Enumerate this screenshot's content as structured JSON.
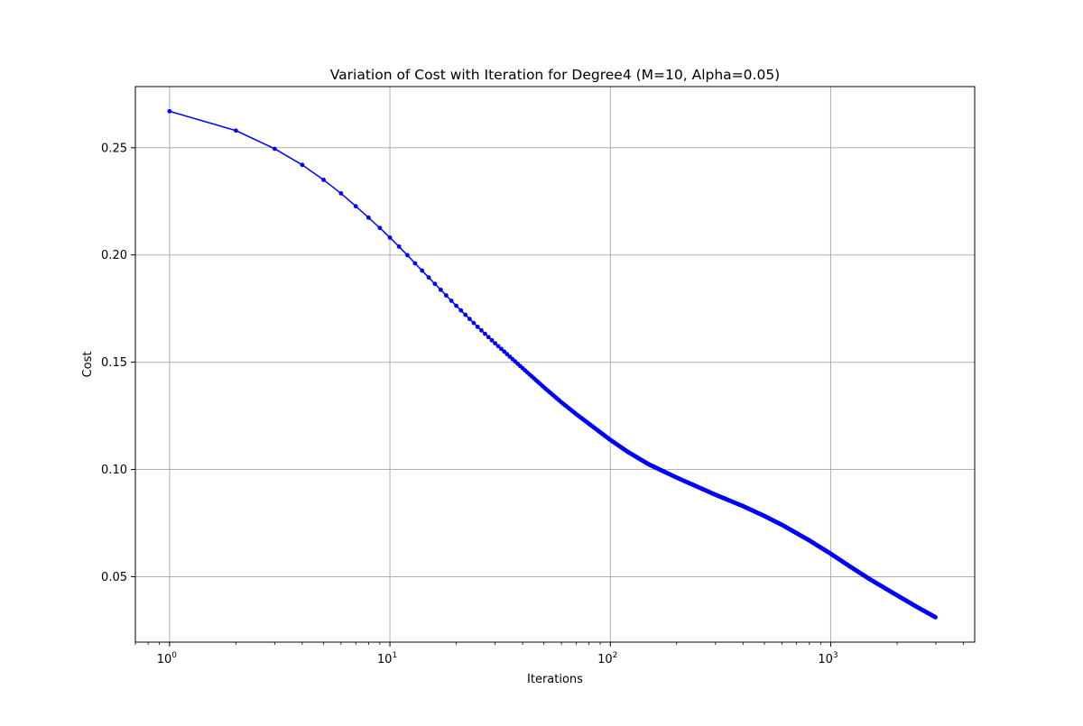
{
  "chart_data": {
    "type": "line",
    "title": "Variation of Cost with Iteration for Degree4 (M=10, Alpha=0.05)",
    "xlabel": "Iterations",
    "ylabel": "Cost",
    "xscale": "log",
    "xlim": [
      0.7,
      4500
    ],
    "ylim": [
      0.0195,
      0.2785
    ],
    "grid": true,
    "x_tick_labels": [
      {
        "value": 1,
        "base": "10",
        "exp": "0"
      },
      {
        "value": 10,
        "base": "10",
        "exp": "1"
      },
      {
        "value": 100,
        "base": "10",
        "exp": "2"
      },
      {
        "value": 1000,
        "base": "10",
        "exp": "3"
      }
    ],
    "y_ticks": [
      0.05,
      0.1,
      0.15,
      0.2,
      0.25
    ],
    "y_tick_labels": [
      "0.05",
      "0.10",
      "0.15",
      "0.20",
      "0.25"
    ],
    "series": [
      {
        "color": "#0000ff",
        "marker": "point",
        "x": [
          1,
          2,
          3,
          4,
          5,
          6,
          7,
          8,
          9,
          10,
          11,
          12,
          13,
          14,
          15,
          20,
          25,
          30,
          40,
          50,
          60,
          70,
          80,
          100,
          120,
          150,
          200,
          250,
          300,
          400,
          500,
          600,
          700,
          800,
          1000,
          1200,
          1500,
          2000,
          2500,
          3000
        ],
        "y": [
          0.267,
          0.258,
          0.2495,
          0.242,
          0.235,
          0.2287,
          0.2227,
          0.2174,
          0.2126,
          0.2081,
          0.2039,
          0.1999,
          0.1961,
          0.1927,
          0.1895,
          0.1763,
          0.1665,
          0.1588,
          0.1472,
          0.1383,
          0.1313,
          0.1258,
          0.1213,
          0.1138,
          0.1082,
          0.1023,
          0.0962,
          0.0918,
          0.0882,
          0.0829,
          0.0783,
          0.0742,
          0.0703,
          0.0669,
          0.0607,
          0.0553,
          0.0489,
          0.0413,
          0.0355,
          0.031
        ]
      }
    ]
  }
}
